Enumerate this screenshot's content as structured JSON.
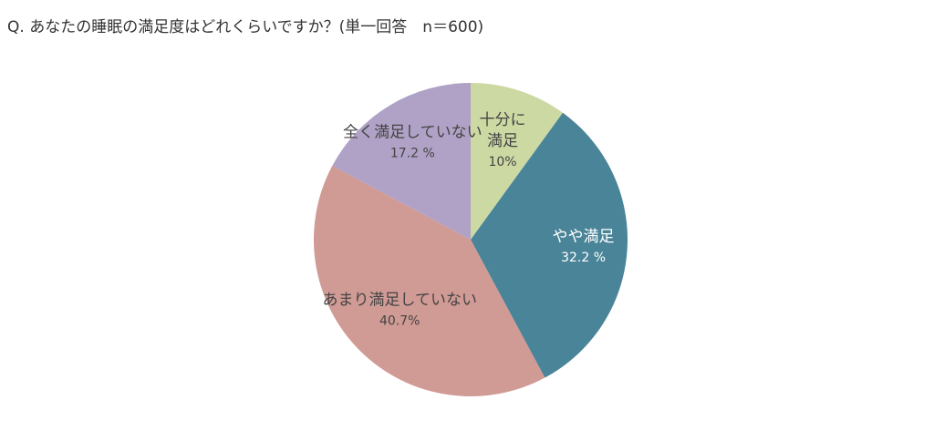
{
  "chart_data": {
    "type": "pie",
    "title": "Q. あなたの睡眠の満足度はどれくらいですか？(単一回答　n＝600)",
    "categories": [
      "十分に\n満足",
      "やや満足",
      "あまり満足していない",
      "全く満足していない"
    ],
    "values": [
      10,
      32.2,
      40.7,
      17.2
    ],
    "value_labels": [
      "10%",
      "32.2 %",
      "40.7%",
      "17.2 %"
    ],
    "colors": [
      "#cdd9a3",
      "#4a8499",
      "#d09a95",
      "#b0a2c6"
    ]
  }
}
